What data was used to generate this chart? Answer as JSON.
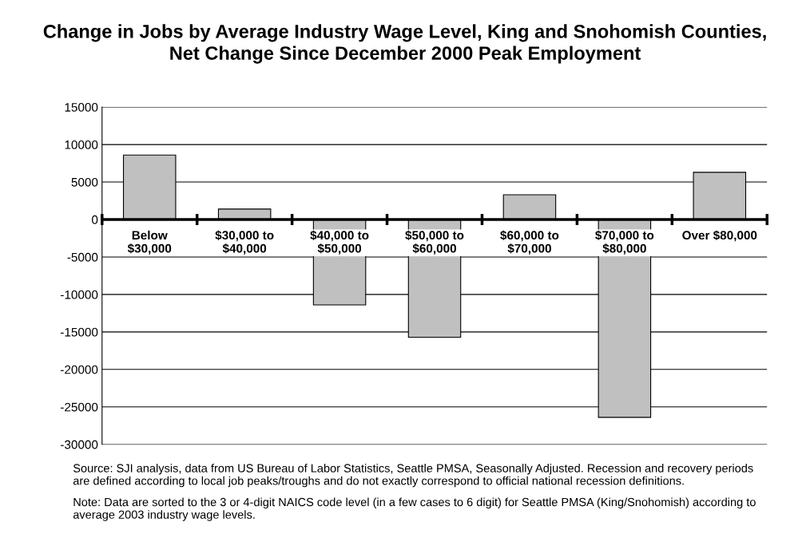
{
  "chart_data": {
    "type": "bar",
    "title": "Change in Jobs by Average Industry Wage Level, King and Snohomish Counties,\nNet Change Since December 2000 Peak Employment",
    "categories": [
      "Below\n$30,000",
      "$30,000 to\n$40,000",
      "$40,000 to\n$50,000",
      "$50,000 to\n$60,000",
      "$60,000 to\n$70,000",
      "$70,000 to\n$80,000",
      "Over $80,000"
    ],
    "values": [
      8600,
      1400,
      -11400,
      -15700,
      3300,
      -26400,
      6300
    ],
    "color": "#c0c0c0",
    "ylim": [
      -30000,
      15000
    ],
    "yticks": [
      -30000,
      -25000,
      -20000,
      -15000,
      -10000,
      -5000,
      0,
      5000,
      10000,
      15000
    ],
    "grid": "y",
    "annotations": [
      "Source: SJI analysis, data from US Bureau of Labor Statistics, Seattle PMSA, Seasonally Adjusted. Recession and recovery periods\nare defined according to local job peaks/troughs and do not exactly correspond to official national recession definitions.",
      "Note: Data are sorted to the 3 or 4-digit NAICS code level (in a few cases to 6 digit) for Seattle PMSA (King/Snohomish) according to\naverage 2003 industry wage levels."
    ]
  }
}
